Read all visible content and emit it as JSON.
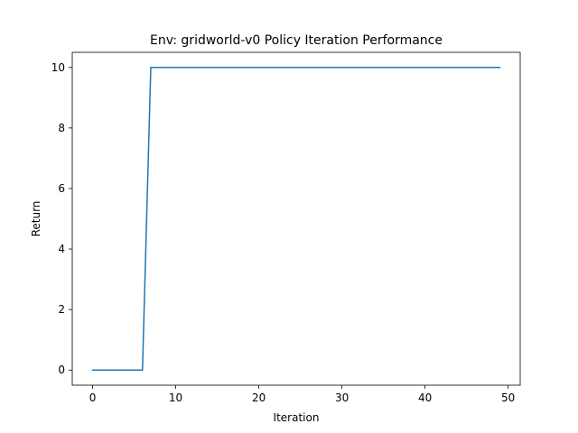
{
  "chart_data": {
    "type": "line",
    "title": "Env: gridworld-v0 Policy Iteration Performance",
    "xlabel": "Iteration",
    "ylabel": "Return",
    "xlim": [
      -2.45,
      51.45
    ],
    "ylim": [
      -0.5,
      10.5
    ],
    "xticks": [
      0,
      10,
      20,
      30,
      40,
      50
    ],
    "yticks": [
      0,
      2,
      4,
      6,
      8,
      10
    ],
    "grid": false,
    "series": [
      {
        "color": "#1f77b4",
        "x": [
          0,
          1,
          2,
          3,
          4,
          5,
          6,
          7,
          8,
          9,
          10,
          11,
          12,
          13,
          14,
          15,
          16,
          17,
          18,
          19,
          20,
          21,
          22,
          23,
          24,
          25,
          26,
          27,
          28,
          29,
          30,
          31,
          32,
          33,
          34,
          35,
          36,
          37,
          38,
          39,
          40,
          41,
          42,
          43,
          44,
          45,
          46,
          47,
          48,
          49
        ],
        "y": [
          0,
          0,
          0,
          0,
          0,
          0,
          0,
          10,
          10,
          10,
          10,
          10,
          10,
          10,
          10,
          10,
          10,
          10,
          10,
          10,
          10,
          10,
          10,
          10,
          10,
          10,
          10,
          10,
          10,
          10,
          10,
          10,
          10,
          10,
          10,
          10,
          10,
          10,
          10,
          10,
          10,
          10,
          10,
          10,
          10,
          10,
          10,
          10,
          10,
          10
        ]
      }
    ]
  }
}
